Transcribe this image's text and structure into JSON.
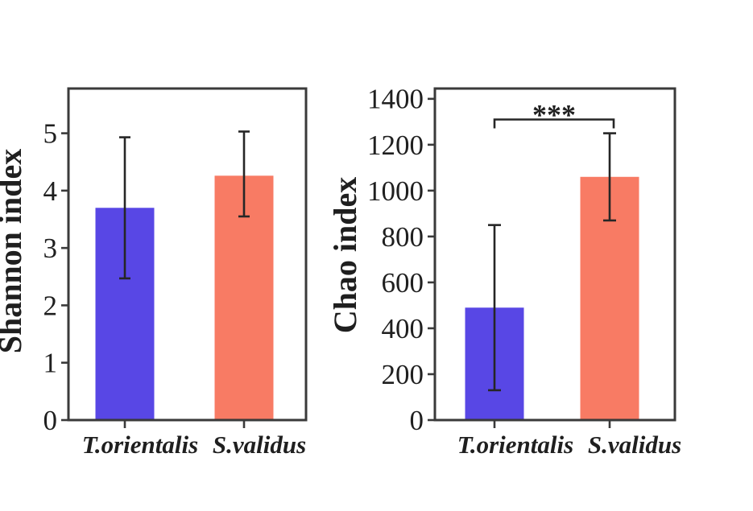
{
  "figure": {
    "background": "#ffffff",
    "description": "Two bar charts comparing alpha diversity indices between two species"
  },
  "style": {
    "axis_color": "#3a3a3a",
    "text_color": "#1f1f1f",
    "error_bar_color": "#262626"
  },
  "chart_data": [
    {
      "type": "bar",
      "name": "shannon-index-chart",
      "title": "",
      "xlabel": "",
      "ylabel": "Shannon index",
      "categories": [
        "T.orientalis",
        "S.validus"
      ],
      "values": [
        3.7,
        4.26
      ],
      "error_low": [
        2.47,
        3.55
      ],
      "error_high": [
        4.93,
        5.03
      ],
      "bar_colors": [
        "#5847e5",
        "#f87b64"
      ],
      "ylim": [
        0,
        5.78
      ],
      "yticks": [
        0,
        1,
        2,
        3,
        4,
        5
      ],
      "grid": false,
      "legend": null,
      "significance": null
    },
    {
      "type": "bar",
      "name": "chao-index-chart",
      "title": "",
      "xlabel": "",
      "ylabel": "Chao index",
      "categories": [
        "T.orientalis",
        "S.validus"
      ],
      "values": [
        490,
        1060
      ],
      "error_low": [
        130,
        870
      ],
      "error_high": [
        850,
        1250
      ],
      "bar_colors": [
        "#5847e5",
        "#f87b64"
      ],
      "ylim": [
        0,
        1445
      ],
      "yticks": [
        0,
        200,
        400,
        600,
        800,
        1000,
        1200,
        1400
      ],
      "grid": false,
      "legend": null,
      "significance": {
        "label": "***",
        "color": "#df1212",
        "bracket_y_value": 1310,
        "between_categories": [
          "T.orientalis",
          "S.validus"
        ]
      }
    }
  ]
}
